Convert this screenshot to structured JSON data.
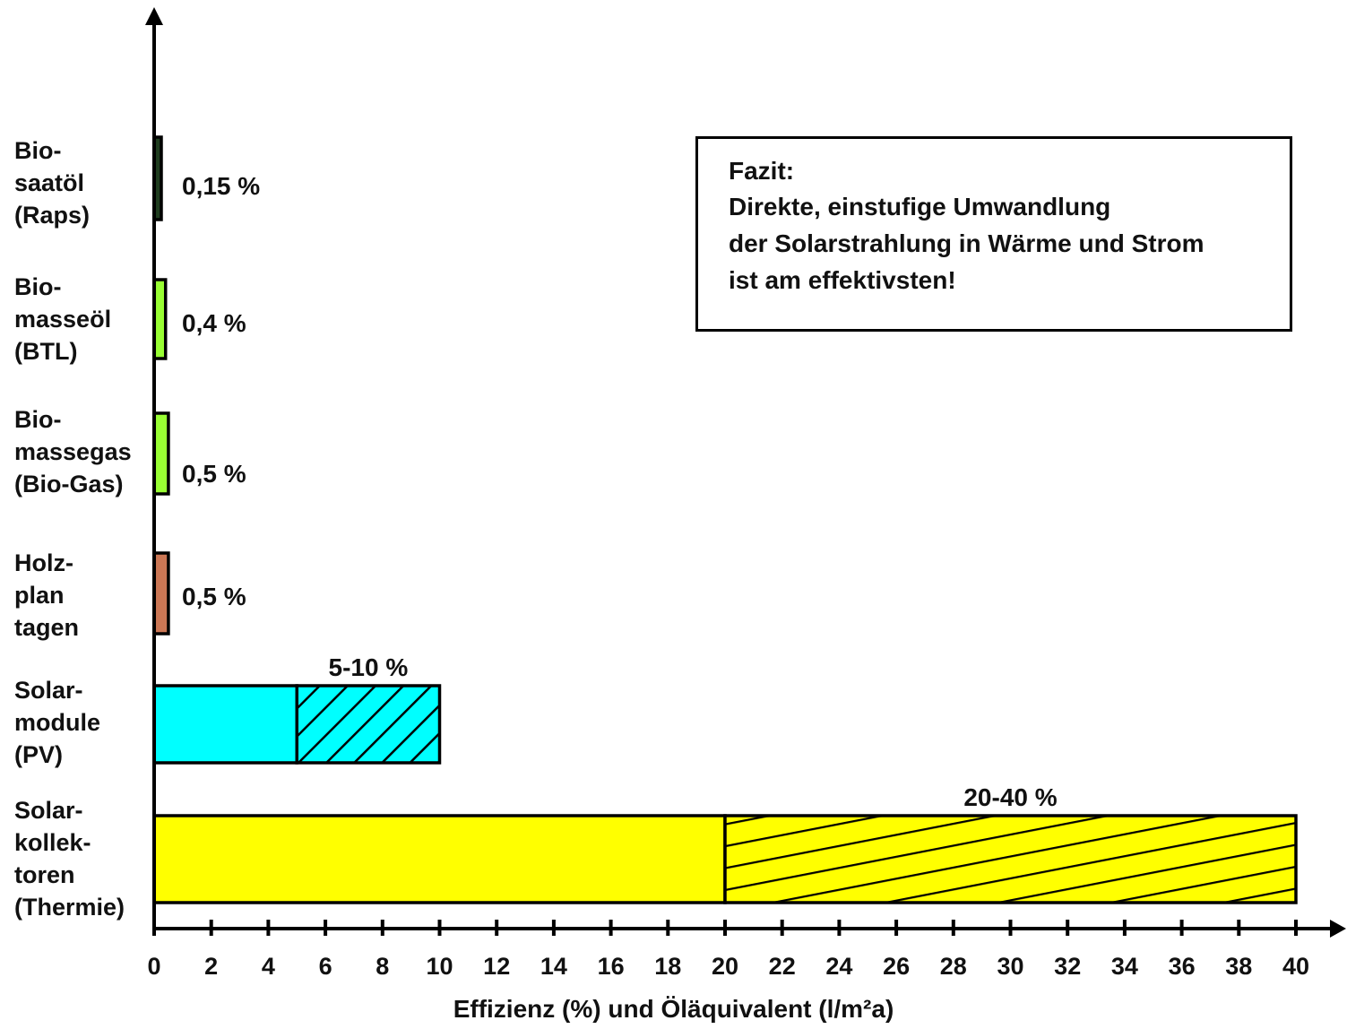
{
  "chart_data": {
    "type": "bar",
    "orientation": "horizontal",
    "xlabel": "Effizienz (%) und Öläquivalent (l/m²a)",
    "xlim": [
      0,
      40
    ],
    "xticks": [
      "0",
      "2",
      "4",
      "6",
      "8",
      "10",
      "12",
      "14",
      "16",
      "18",
      "20",
      "22",
      "24",
      "26",
      "28",
      "30",
      "32",
      "34",
      "36",
      "38",
      "40"
    ],
    "grid": false,
    "categories": [
      {
        "lines": [
          "Bio-",
          "saatöl",
          "(Raps)"
        ],
        "min": 0.15,
        "max": 0.15,
        "label": "0,15 %",
        "color": "#1f3d1f"
      },
      {
        "lines": [
          "Bio-",
          "masseöl",
          "(BTL)"
        ],
        "min": 0.4,
        "max": 0.4,
        "label": "0,4 %",
        "color": "#99ff33"
      },
      {
        "lines": [
          "Bio-",
          "massegas",
          "(Bio-Gas)"
        ],
        "min": 0.5,
        "max": 0.5,
        "label": "0,5 %",
        "color": "#99ff33"
      },
      {
        "lines": [
          "Holz-",
          "plan",
          "tagen"
        ],
        "min": 0.5,
        "max": 0.5,
        "label": "0,5 %",
        "color": "#cc7755"
      },
      {
        "lines": [
          "Solar-",
          "module",
          "(PV)"
        ],
        "min": 5,
        "max": 10,
        "label": "5-10 %",
        "color": "#00ffff"
      },
      {
        "lines": [
          "Solar-",
          "kollek-",
          "toren",
          "(Thermie)"
        ],
        "min": 20,
        "max": 40,
        "label": "20-40 %",
        "color": "#ffff00"
      }
    ],
    "annotation": {
      "lines": [
        "Fazit:",
        "Direkte, einstufige Umwandlung",
        "der Solarstrahlung in Wärme und Strom",
        "ist am effektivsten!"
      ]
    }
  }
}
